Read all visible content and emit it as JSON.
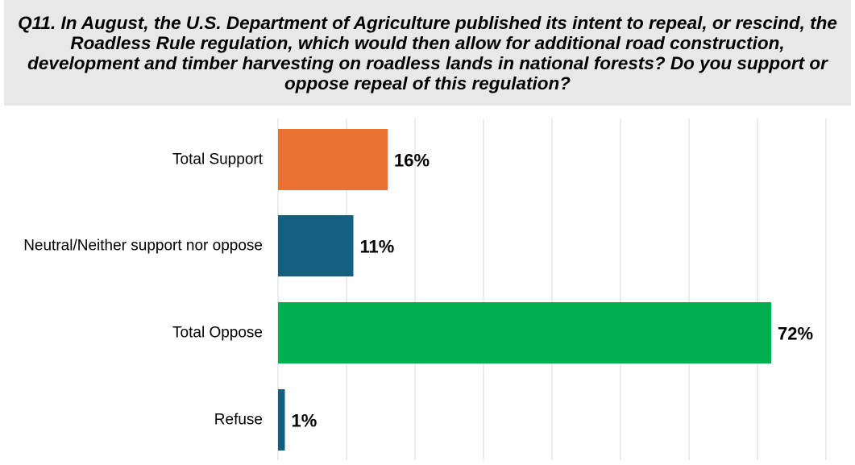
{
  "chart_data": {
    "type": "bar",
    "orientation": "horizontal",
    "title": "Q11. In August, the U.S. Department of Agriculture published its intent to repeal, or rescind, the Roadless Rule regulation, which would then allow for additional road construction, development and timber harvesting on roadless lands in national forests? Do you support or oppose repeal of this regulation?",
    "categories": [
      "Total Support",
      "Neutral/Neither support nor oppose",
      "Total Oppose",
      "Refuse"
    ],
    "values": [
      16,
      11,
      72,
      1
    ],
    "value_labels": [
      "16%",
      "11%",
      "72%",
      "1%"
    ],
    "colors": [
      "#e97132",
      "#156082",
      "#00b050",
      "#156082"
    ],
    "xlim": [
      0,
      80
    ],
    "grid": true,
    "gridline_color": "#d9d9d9",
    "title_background": "#e8e8e8"
  }
}
